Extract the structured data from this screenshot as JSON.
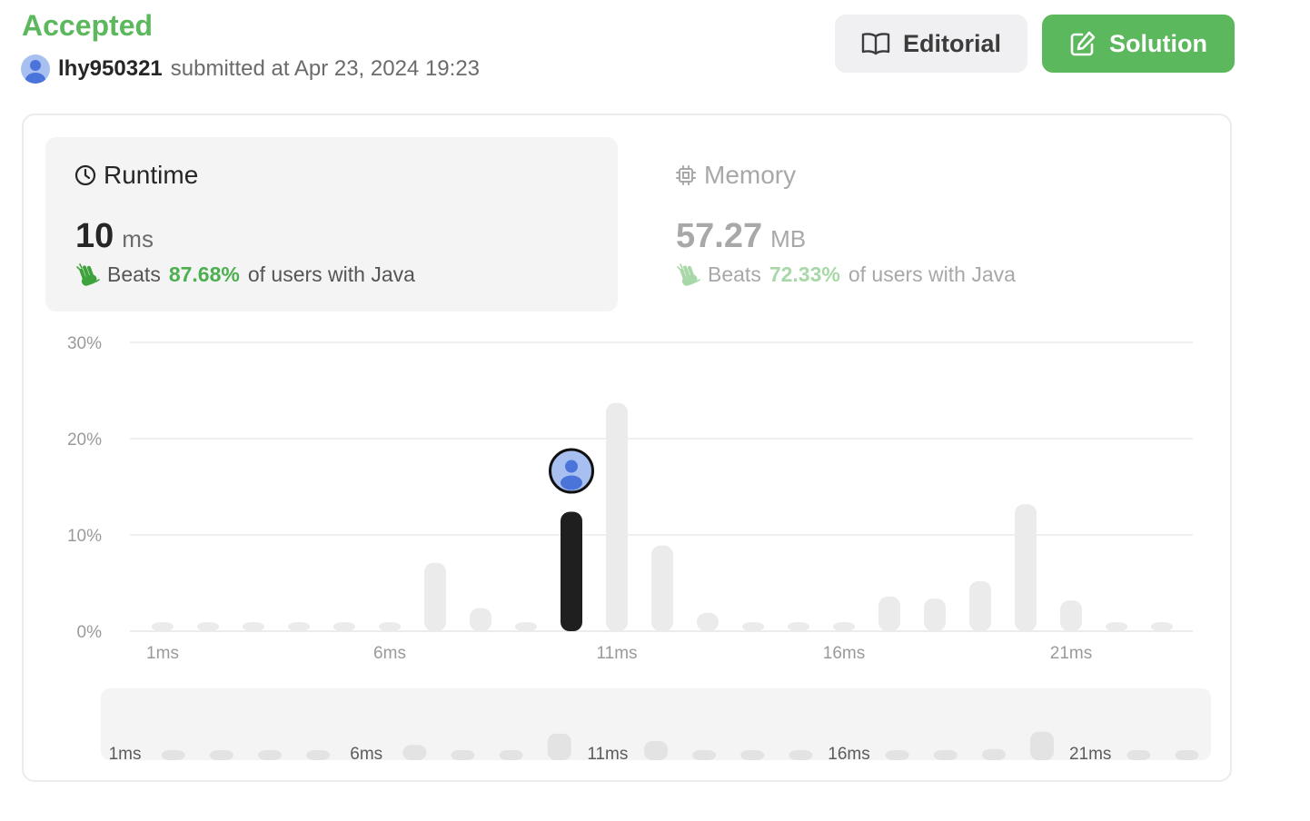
{
  "header": {
    "status": "Accepted",
    "username": "lhy950321",
    "submitted_text": "submitted at Apr 23, 2024 19:23",
    "editorial_label": "Editorial",
    "solution_label": "Solution"
  },
  "runtime": {
    "title": "Runtime",
    "value": "10",
    "unit": "ms",
    "beats_label": "Beats",
    "beats_pct": "87.68%",
    "beats_suffix": "of users with Java"
  },
  "memory": {
    "title": "Memory",
    "value": "57.27",
    "unit": "MB",
    "beats_label": "Beats",
    "beats_pct": "72.33%",
    "beats_suffix": "of users with Java"
  },
  "colors": {
    "accent_green": "#5cb85c",
    "highlight_bar": "#1f1f1f",
    "bar": "#ebebeb"
  },
  "chart_data": {
    "type": "bar",
    "x": [
      "1ms",
      "2ms",
      "3ms",
      "4ms",
      "5ms",
      "6ms",
      "7ms",
      "8ms",
      "9ms",
      "10ms",
      "11ms",
      "12ms",
      "13ms",
      "14ms",
      "15ms",
      "16ms",
      "17ms",
      "18ms",
      "19ms",
      "20ms",
      "21ms",
      "22ms",
      "23ms"
    ],
    "values": [
      0.2,
      0.2,
      0.2,
      0.2,
      0.2,
      0.2,
      7.1,
      2.4,
      0.2,
      12.4,
      23.7,
      8.9,
      1.9,
      0.2,
      0.2,
      0.2,
      3.6,
      3.4,
      5.2,
      13.2,
      3.2,
      0.2,
      0.2
    ],
    "highlight_index": 9,
    "x_ticks": [
      "1ms",
      "6ms",
      "11ms",
      "16ms",
      "21ms"
    ],
    "y_ticks": [
      "0%",
      "10%",
      "20%",
      "30%"
    ],
    "ylim": [
      0,
      30
    ],
    "grid": true
  }
}
